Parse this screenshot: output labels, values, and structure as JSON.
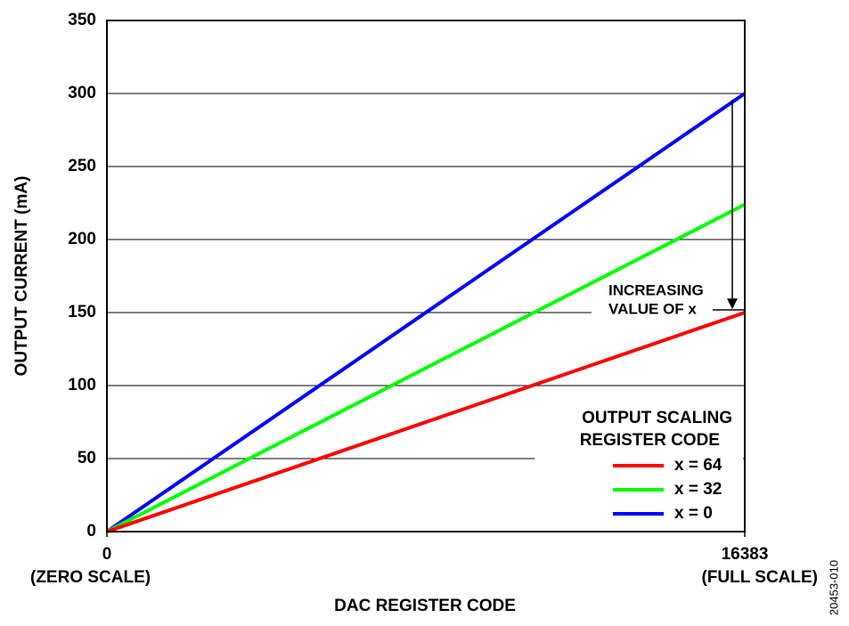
{
  "chart_data": {
    "type": "line",
    "x_label": "DAC REGISTER CODE",
    "y_label": "OUTPUT CURRENT (mA)",
    "x": [
      0,
      16383
    ],
    "xlim": [
      0,
      16383
    ],
    "xticks": [
      0,
      16383
    ],
    "xtick_notes": [
      "(ZERO SCALE)",
      "(FULL SCALE)"
    ],
    "ylim": [
      0,
      350
    ],
    "yticks": [
      0,
      50,
      100,
      150,
      200,
      250,
      300,
      350
    ],
    "grid": true,
    "legend_title": [
      "OUTPUT SCALING",
      "REGISTER CODE"
    ],
    "legend_position": "lower right",
    "annotation": [
      "INCREASING",
      "VALUE OF x"
    ],
    "figure_code": "20453-010",
    "series": [
      {
        "name": "x = 64",
        "color": "#ff0000",
        "values": [
          0,
          150
        ]
      },
      {
        "name": "x = 32",
        "color": "#00ff00",
        "values": [
          0,
          224
        ]
      },
      {
        "name": "x = 0",
        "color": "#0000ff",
        "values": [
          0,
          300
        ]
      }
    ]
  }
}
